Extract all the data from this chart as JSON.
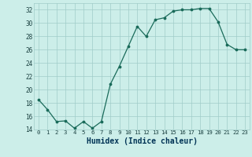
{
  "x": [
    0,
    1,
    2,
    3,
    4,
    5,
    6,
    7,
    8,
    9,
    10,
    11,
    12,
    13,
    14,
    15,
    16,
    17,
    18,
    19,
    20,
    21,
    22,
    23
  ],
  "y": [
    18.5,
    17.0,
    15.2,
    15.3,
    14.2,
    15.2,
    14.2,
    15.2,
    20.8,
    23.5,
    26.5,
    29.5,
    28.0,
    30.5,
    30.8,
    31.8,
    32.0,
    32.0,
    32.2,
    32.2,
    30.2,
    26.8,
    26.0,
    26.0
  ],
  "xlim": [
    -0.5,
    23.5
  ],
  "ylim": [
    14,
    33
  ],
  "yticks": [
    14,
    16,
    18,
    20,
    22,
    24,
    26,
    28,
    30,
    32
  ],
  "xticks": [
    0,
    1,
    2,
    3,
    4,
    5,
    6,
    7,
    8,
    9,
    10,
    11,
    12,
    13,
    14,
    15,
    16,
    17,
    18,
    19,
    20,
    21,
    22,
    23
  ],
  "xlabel": "Humidex (Indice chaleur)",
  "line_color": "#1a6b5a",
  "marker_color": "#1a6b5a",
  "bg_color": "#cceee9",
  "grid_color": "#a0ccc8",
  "tick_label_color": "#1a4040",
  "xlabel_color": "#003355"
}
